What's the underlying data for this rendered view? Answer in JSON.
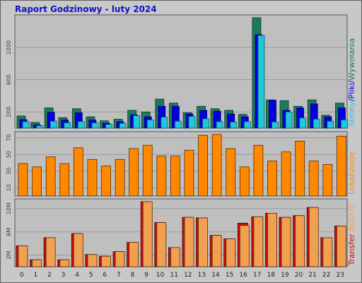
{
  "colors": {
    "frame_bg": "#c8c8c8",
    "panel_bg": "#bfbfbf",
    "grid": "#9a9a9a",
    "title": "#1010c8",
    "pages": "#1e7a58",
    "files": "#0000e0",
    "hits": "#20c8d8",
    "visits": "#ff8800",
    "transfer": "#cc1010",
    "inout": "#f0a050"
  },
  "chart_data": [
    {
      "type": "bar",
      "title": "Raport Godzinowy -  luty 2024",
      "categories": [
        "0",
        "1",
        "2",
        "3",
        "4",
        "5",
        "6",
        "7",
        "8",
        "9",
        "10",
        "11",
        "12",
        "13",
        "14",
        "15",
        "16",
        "17",
        "18",
        "19",
        "20",
        "21",
        "22",
        "23"
      ],
      "y_ticks": [
        "200",
        "600",
        "1000"
      ],
      "ylim": [
        0,
        1370
      ],
      "legend": [
        {
          "text": "Strony",
          "color_key": "hits"
        },
        {
          "text": "/",
          "color_key": "files"
        },
        {
          "text": "Pliki",
          "color_key": "files"
        },
        {
          "text": "/",
          "color_key": "files"
        },
        {
          "text": "Wywołania",
          "color_key": "pages"
        }
      ],
      "series": [
        {
          "values": [
            150,
            70,
            250,
            130,
            240,
            140,
            90,
            110,
            220,
            200,
            360,
            310,
            190,
            270,
            240,
            220,
            170,
            1370,
            350,
            340,
            270,
            350,
            160,
            310
          ]
        },
        {
          "values": [
            105,
            40,
            195,
            100,
            190,
            100,
            60,
            80,
            165,
            140,
            270,
            270,
            175,
            220,
            210,
            175,
            140,
            1160,
            345,
            220,
            250,
            300,
            140,
            250
          ]
        },
        {
          "values": [
            80,
            30,
            85,
            65,
            80,
            65,
            45,
            60,
            155,
            100,
            135,
            85,
            145,
            115,
            80,
            75,
            80,
            1150,
            75,
            200,
            125,
            110,
            85,
            100
          ]
        }
      ]
    },
    {
      "type": "bar",
      "categories": [
        "0",
        "1",
        "2",
        "3",
        "4",
        "5",
        "6",
        "7",
        "8",
        "9",
        "10",
        "11",
        "12",
        "13",
        "14",
        "15",
        "16",
        "17",
        "18",
        "19",
        "20",
        "21",
        "22",
        "23"
      ],
      "y_ticks": [
        "10",
        "30",
        "50",
        "70"
      ],
      "ylim": [
        0,
        74
      ],
      "legend": [
        {
          "text": "Lokalizacje",
          "color_key": "visits"
        }
      ],
      "series": [
        {
          "values": [
            39,
            35,
            47,
            39,
            58,
            44,
            36,
            44,
            57,
            61,
            48,
            48,
            55,
            73,
            74,
            57,
            35,
            61,
            42,
            53,
            66,
            42,
            38,
            72
          ]
        }
      ]
    },
    {
      "type": "bar",
      "categories": [
        "0",
        "1",
        "2",
        "3",
        "4",
        "5",
        "6",
        "7",
        "8",
        "9",
        "10",
        "11",
        "12",
        "13",
        "14",
        "15",
        "16",
        "17",
        "18",
        "19",
        "20",
        "21",
        "22",
        "23"
      ],
      "y_ticks": [
        "2M",
        "6M",
        "10M"
      ],
      "ylim": [
        0,
        11.2
      ],
      "legend": [
        {
          "text": "Transfer",
          "color_key": "transfer"
        },
        {
          "text": "IN",
          "color_key": "inout"
        },
        {
          "text": "/",
          "color_key": "inout"
        },
        {
          "text": "OUT",
          "color_key": "inout"
        }
      ],
      "series": [
        {
          "values": [
            3.6,
            1.2,
            5.0,
            1.2,
            5.7,
            2.1,
            1.8,
            2.6,
            4.2,
            11.2,
            7.6,
            3.3,
            8.5,
            8.4,
            5.4,
            4.8,
            7.5,
            8.6,
            9.2,
            8.5,
            8.8,
            10.2,
            5.0,
            7.0
          ]
        },
        {
          "values": [
            3.6,
            1.2,
            5.0,
            1.2,
            5.7,
            2.1,
            1.8,
            2.6,
            4.2,
            11.2,
            7.6,
            3.3,
            8.5,
            8.4,
            5.4,
            4.8,
            7.1,
            8.6,
            9.2,
            8.5,
            8.8,
            10.2,
            5.0,
            7.0
          ]
        }
      ]
    }
  ]
}
